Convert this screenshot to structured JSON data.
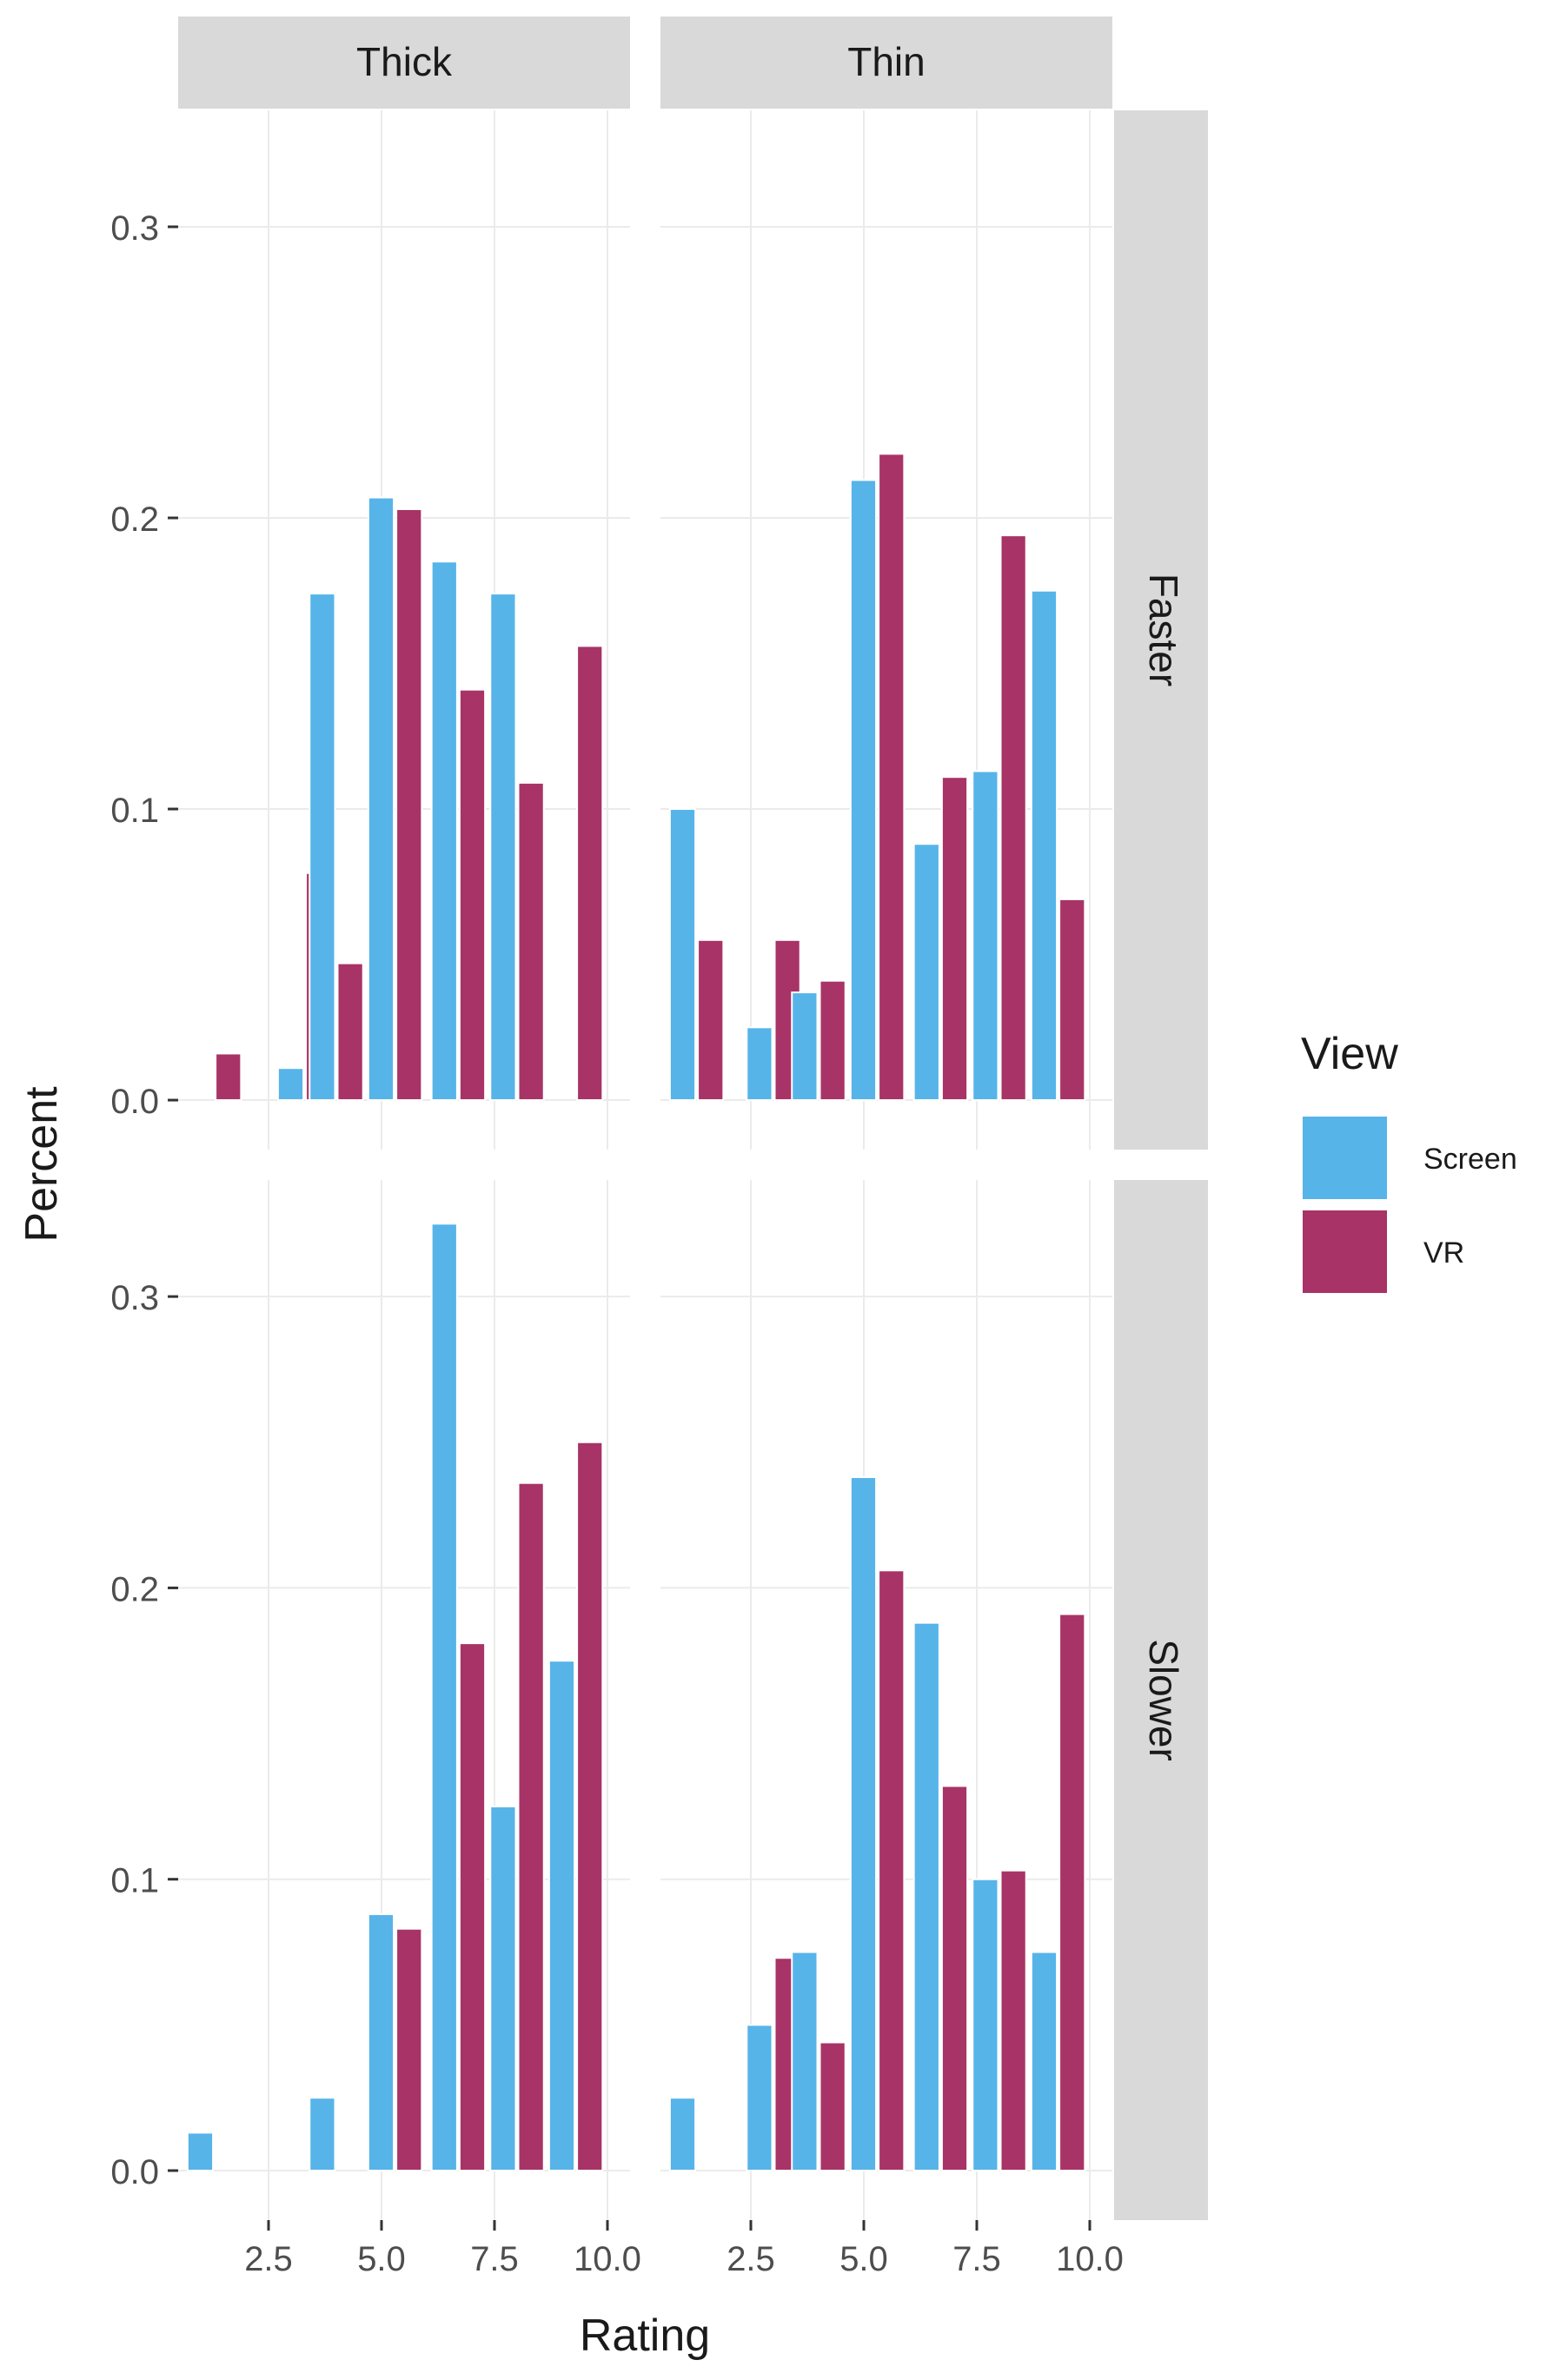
{
  "chart_data": {
    "type": "bar",
    "facets": {
      "columns": [
        "Thick",
        "Thin"
      ],
      "rows": [
        "Faster",
        "Slower"
      ]
    },
    "xlabel": "Rating",
    "ylabel": "Percent",
    "x_ticks": [
      2.5,
      5.0,
      7.5,
      10.0
    ],
    "x_tick_labels": [
      "2.5",
      "5.0",
      "7.5",
      "10.0"
    ],
    "y_ticks": [
      0.0,
      0.1,
      0.2,
      0.3
    ],
    "y_tick_labels": [
      "0.0",
      "0.1",
      "0.2",
      "0.3"
    ],
    "xlim": [
      0.5,
      10.5
    ],
    "ylim": [
      -0.017,
      0.34
    ],
    "legend": {
      "title": "View",
      "position": "right",
      "entries": [
        "Screen",
        "VR"
      ]
    },
    "colors": {
      "Screen": "#56B4E9",
      "VR": "#A83366",
      "strip": "#D9D9D9",
      "grid": "#EBEBEB"
    },
    "panels": [
      {
        "column": "Thick",
        "row": "Faster",
        "x": [
          1.3,
          3.3,
          4.0,
          5.3,
          6.7,
          8.0,
          9.3
        ],
        "Screen": [
          0,
          0.011,
          0.174,
          0.207,
          0.185,
          0.174,
          0
        ],
        "VR": [
          0.016,
          0.078,
          0.047,
          0.203,
          0.141,
          0.109,
          0.156
        ]
      },
      {
        "column": "Thin",
        "row": "Faster",
        "x": [
          1.3,
          3.0,
          4.0,
          5.3,
          6.7,
          8.0,
          9.3
        ],
        "Screen": [
          0.1,
          0.025,
          0.037,
          0.213,
          0.088,
          0.113,
          0.175
        ],
        "VR": [
          0.055,
          0.055,
          0.041,
          0.222,
          0.111,
          0.194,
          0.069
        ]
      },
      {
        "column": "Thick",
        "row": "Slower",
        "x": [
          1.3,
          3.0,
          4.0,
          5.3,
          6.7,
          8.0,
          9.3
        ],
        "Screen": [
          0.013,
          0,
          0.025,
          0.088,
          0.325,
          0.125,
          0.175
        ],
        "VR": [
          0,
          0,
          0,
          0.083,
          0.181,
          0.236,
          0.25
        ]
      },
      {
        "column": "Thin",
        "row": "Slower",
        "x": [
          1.3,
          3.0,
          4.0,
          5.3,
          6.7,
          8.0,
          9.3
        ],
        "Screen": [
          0.025,
          0.05,
          0.075,
          0.238,
          0.188,
          0.1,
          0.075
        ],
        "VR": [
          0,
          0.073,
          0.044,
          0.206,
          0.132,
          0.103,
          0.191
        ]
      }
    ]
  }
}
